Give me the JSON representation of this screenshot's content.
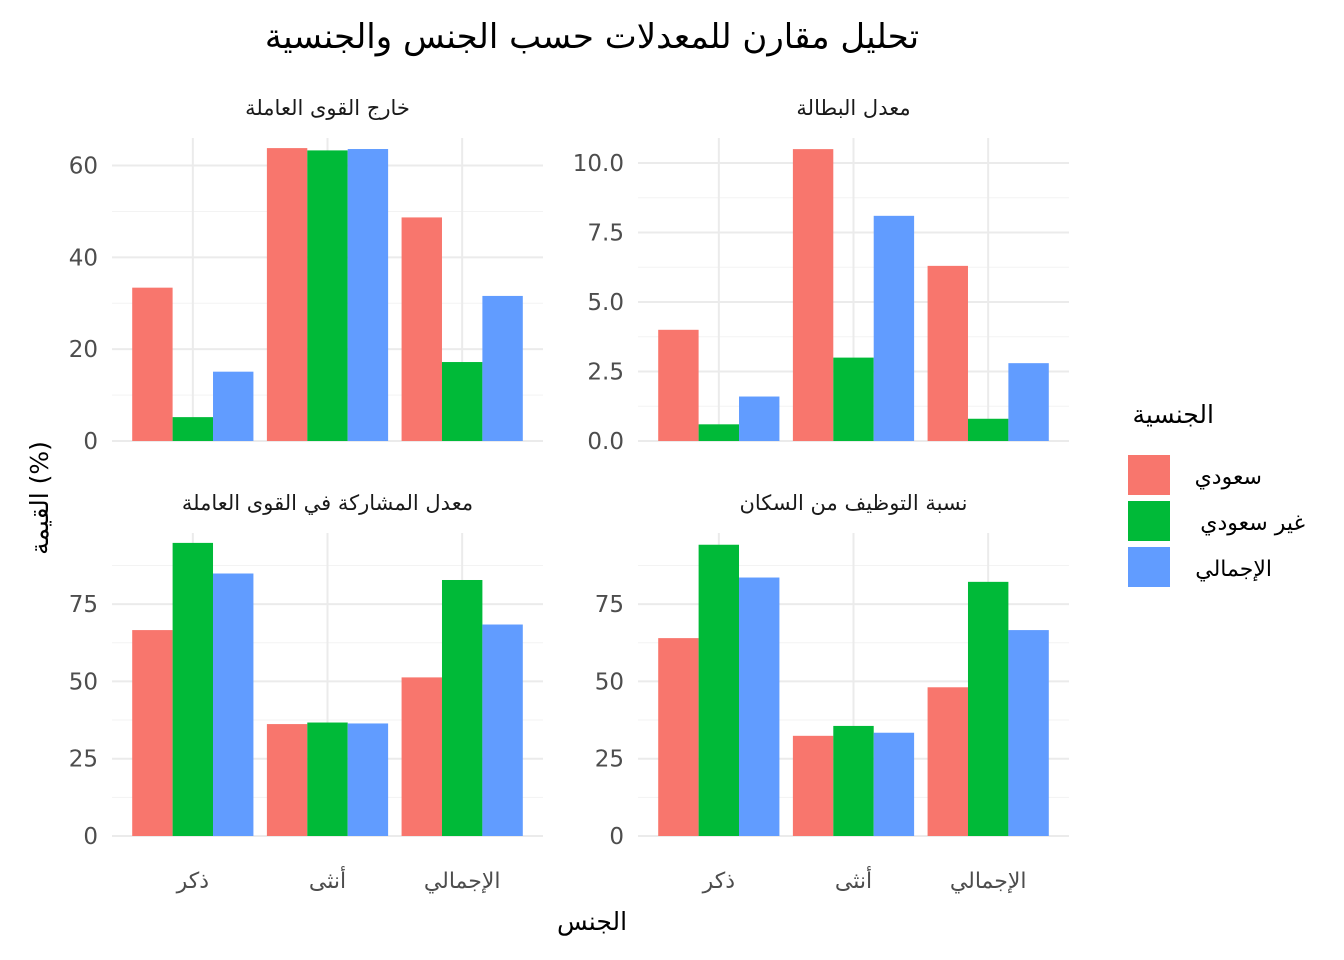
{
  "chart_data": {
    "type": "bar",
    "title": "تحليل مقارن للمعدلات حسب الجنس والجنسية",
    "xlabel": "الجنس",
    "ylabel": "القيمة (%)",
    "categories": [
      "ذكر",
      "أنثى",
      "الإجمالي"
    ],
    "legend": {
      "title": "الجنسية",
      "position": "right",
      "entries": [
        {
          "name": "سعودي",
          "color": "#F8766D"
        },
        {
          "name": "غير سعودي",
          "color": "#00BA38"
        },
        {
          "name": "الإجمالي",
          "color": "#619CFF"
        }
      ]
    },
    "panels": [
      {
        "title": "خارج القوى العاملة",
        "ylim": [
          0,
          66
        ],
        "yticks": [
          0,
          20,
          40,
          60
        ],
        "series": [
          {
            "name": "سعودي",
            "values": [
              33.4,
              63.8,
              48.7
            ]
          },
          {
            "name": "غير سعودي",
            "values": [
              5.2,
              63.3,
              17.2
            ]
          },
          {
            "name": "الإجمالي",
            "values": [
              15.1,
              63.6,
              31.6
            ]
          }
        ]
      },
      {
        "title": "معدل البطالة",
        "ylim": [
          0,
          10.9
        ],
        "yticks": [
          0.0,
          2.5,
          5.0,
          7.5,
          10.0
        ],
        "ytick_labels": [
          "0.0",
          "2.5",
          "5.0",
          "7.5",
          "10.0"
        ],
        "series": [
          {
            "name": "سعودي",
            "values": [
              4.0,
              10.5,
              6.3
            ]
          },
          {
            "name": "غير سعودي",
            "values": [
              0.6,
              3.0,
              0.8
            ]
          },
          {
            "name": "الإجمالي",
            "values": [
              1.6,
              8.1,
              2.8
            ]
          }
        ]
      },
      {
        "title": "معدل المشاركة في القوى العاملة",
        "ylim": [
          0,
          98
        ],
        "yticks": [
          0,
          25,
          50,
          75
        ],
        "series": [
          {
            "name": "سعودي",
            "values": [
              66.6,
              36.2,
              51.3
            ]
          },
          {
            "name": "غير سعودي",
            "values": [
              94.8,
              36.7,
              82.8
            ]
          },
          {
            "name": "الإجمالي",
            "values": [
              84.9,
              36.4,
              68.4
            ]
          }
        ]
      },
      {
        "title": "نسبة التوظيف من السكان",
        "ylim": [
          0,
          98
        ],
        "yticks": [
          0,
          25,
          50,
          75
        ],
        "series": [
          {
            "name": "سعودي",
            "values": [
              64.0,
              32.4,
              48.1
            ]
          },
          {
            "name": "غير سعودي",
            "values": [
              94.2,
              35.6,
              82.2
            ]
          },
          {
            "name": "الإجمالي",
            "values": [
              83.6,
              33.4,
              66.6
            ]
          }
        ]
      }
    ]
  }
}
